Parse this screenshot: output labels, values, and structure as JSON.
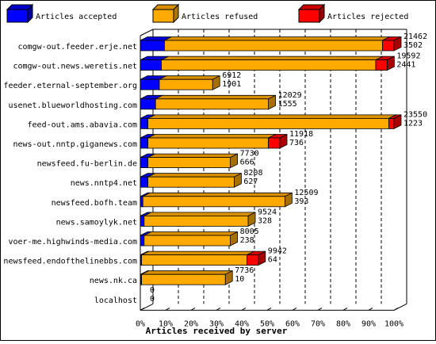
{
  "colors": {
    "accepted": "#0000ff",
    "refused": "#ffaa00",
    "rejected": "#ff0000"
  },
  "legend": {
    "accepted": "Articles accepted",
    "refused": "Articles refused",
    "rejected": "Articles rejected"
  },
  "chart_data": {
    "type": "bar",
    "orientation": "horizontal",
    "stacked": true,
    "percent_stacked": true,
    "xlabel": "Articles received by server",
    "xlim": [
      0,
      100
    ],
    "x_ticks": [
      "0%",
      "10%",
      "20%",
      "30%",
      "40%",
      "50%",
      "60%",
      "70%",
      "80%",
      "90%",
      "100%"
    ],
    "grid": "vertical dashed",
    "legend_position": "top",
    "categories": [
      "comgw-out.feeder.erje.net",
      "comgw-out.news.weretis.net",
      "feeder.eternal-september.org",
      "usenet.blueworldhosting.com",
      "feed-out.ams.abavia.com",
      "news-out.nntp.giganews.com",
      "newsfeed.fu-berlin.de",
      "news.nntp4.net",
      "newsfeed.bofh.team",
      "news.samoylyk.net",
      "voer-me.highwinds-media.com",
      "newsfeed.endofthelinebbs.com",
      "news.nk.ca",
      "localhost"
    ],
    "label_top": [
      "21462",
      "19592",
      "6912",
      "12029",
      "23550",
      "11918",
      "7730",
      "8208",
      "12509",
      "9524",
      "8005",
      "9942",
      "7736",
      "0"
    ],
    "label_bottom": [
      "3502",
      "2441",
      "1901",
      "1555",
      "1223",
      "736",
      "666",
      "627",
      "393",
      "328",
      "238",
      "64",
      "10",
      "0"
    ],
    "series": [
      {
        "name": "Articles accepted",
        "values": [
          9.5,
          8.3,
          7.5,
          6.0,
          3.0,
          3.0,
          3.0,
          3.0,
          1.0,
          1.5,
          1.5,
          0.5,
          0.5,
          0
        ]
      },
      {
        "name": "Articles refused",
        "values": [
          86.0,
          84.5,
          21.0,
          44.5,
          95.0,
          47.5,
          32.5,
          34.0,
          56.0,
          41.0,
          34.0,
          41.5,
          33.0,
          0
        ]
      },
      {
        "name": "Articles rejected",
        "values": [
          4.5,
          4.5,
          0,
          0,
          2.0,
          4.5,
          0,
          0,
          0,
          0,
          0,
          4.5,
          0,
          0
        ]
      }
    ]
  }
}
